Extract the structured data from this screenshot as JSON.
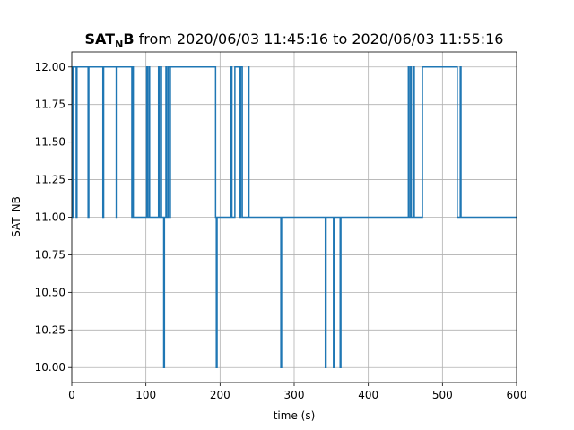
{
  "chart_data": {
    "type": "line",
    "title": {
      "main": "SAT",
      "subscript": "N",
      "bold_suffix": "B",
      "rest": " from 2020/06/03 11:45:16 to 2020/06/03 11:55:16"
    },
    "xlabel": "time (s)",
    "ylabel": "SAT_NB",
    "xlim": [
      0,
      600
    ],
    "ylim": [
      9.9,
      12.1
    ],
    "xticks": [
      0,
      100,
      200,
      300,
      400,
      500,
      600
    ],
    "xtick_labels": [
      "0",
      "100",
      "200",
      "300",
      "400",
      "500",
      "600"
    ],
    "yticks": [
      10.0,
      10.25,
      10.5,
      10.75,
      11.0,
      11.25,
      11.5,
      11.75,
      12.0
    ],
    "ytick_labels": [
      "10.00",
      "10.25",
      "10.50",
      "10.75",
      "11.00",
      "11.25",
      "11.50",
      "11.75",
      "12.00"
    ],
    "grid": true,
    "step_where": "post",
    "series": [
      {
        "color": "#1f77b4",
        "x": [
          0,
          1,
          2,
          6,
          7,
          22,
          23,
          42,
          43,
          60,
          61,
          81,
          82,
          83,
          101,
          102,
          104,
          105,
          117,
          118,
          120,
          121,
          124,
          125,
          127,
          128,
          130,
          132,
          133,
          193,
          194,
          195,
          196,
          197,
          215,
          216,
          219,
          220,
          227,
          228,
          230,
          231,
          238,
          239,
          241,
          242,
          282,
          283,
          284,
          342,
          343,
          344,
          353,
          354,
          356,
          357,
          362,
          363,
          365,
          366,
          454,
          455,
          457,
          458,
          461,
          462,
          466,
          467,
          473,
          474,
          520,
          521,
          524,
          525,
          531,
          532,
          600
        ],
        "y": [
          12,
          11,
          12,
          11,
          12,
          11,
          12,
          11,
          12,
          11,
          12,
          11,
          12,
          11,
          12,
          11,
          12,
          11,
          12,
          11,
          12,
          11,
          10,
          11,
          12,
          11,
          12,
          11,
          12,
          12,
          11,
          10,
          11,
          11,
          12,
          11,
          11,
          12,
          11,
          12,
          11,
          11,
          12,
          11,
          11,
          11,
          10,
          11,
          11,
          10,
          11,
          11,
          10,
          11,
          11,
          11,
          10,
          11,
          11,
          11,
          12,
          11,
          12,
          11,
          12,
          11,
          11,
          11,
          12,
          12,
          11,
          11,
          12,
          11,
          11,
          11,
          11
        ]
      }
    ]
  }
}
